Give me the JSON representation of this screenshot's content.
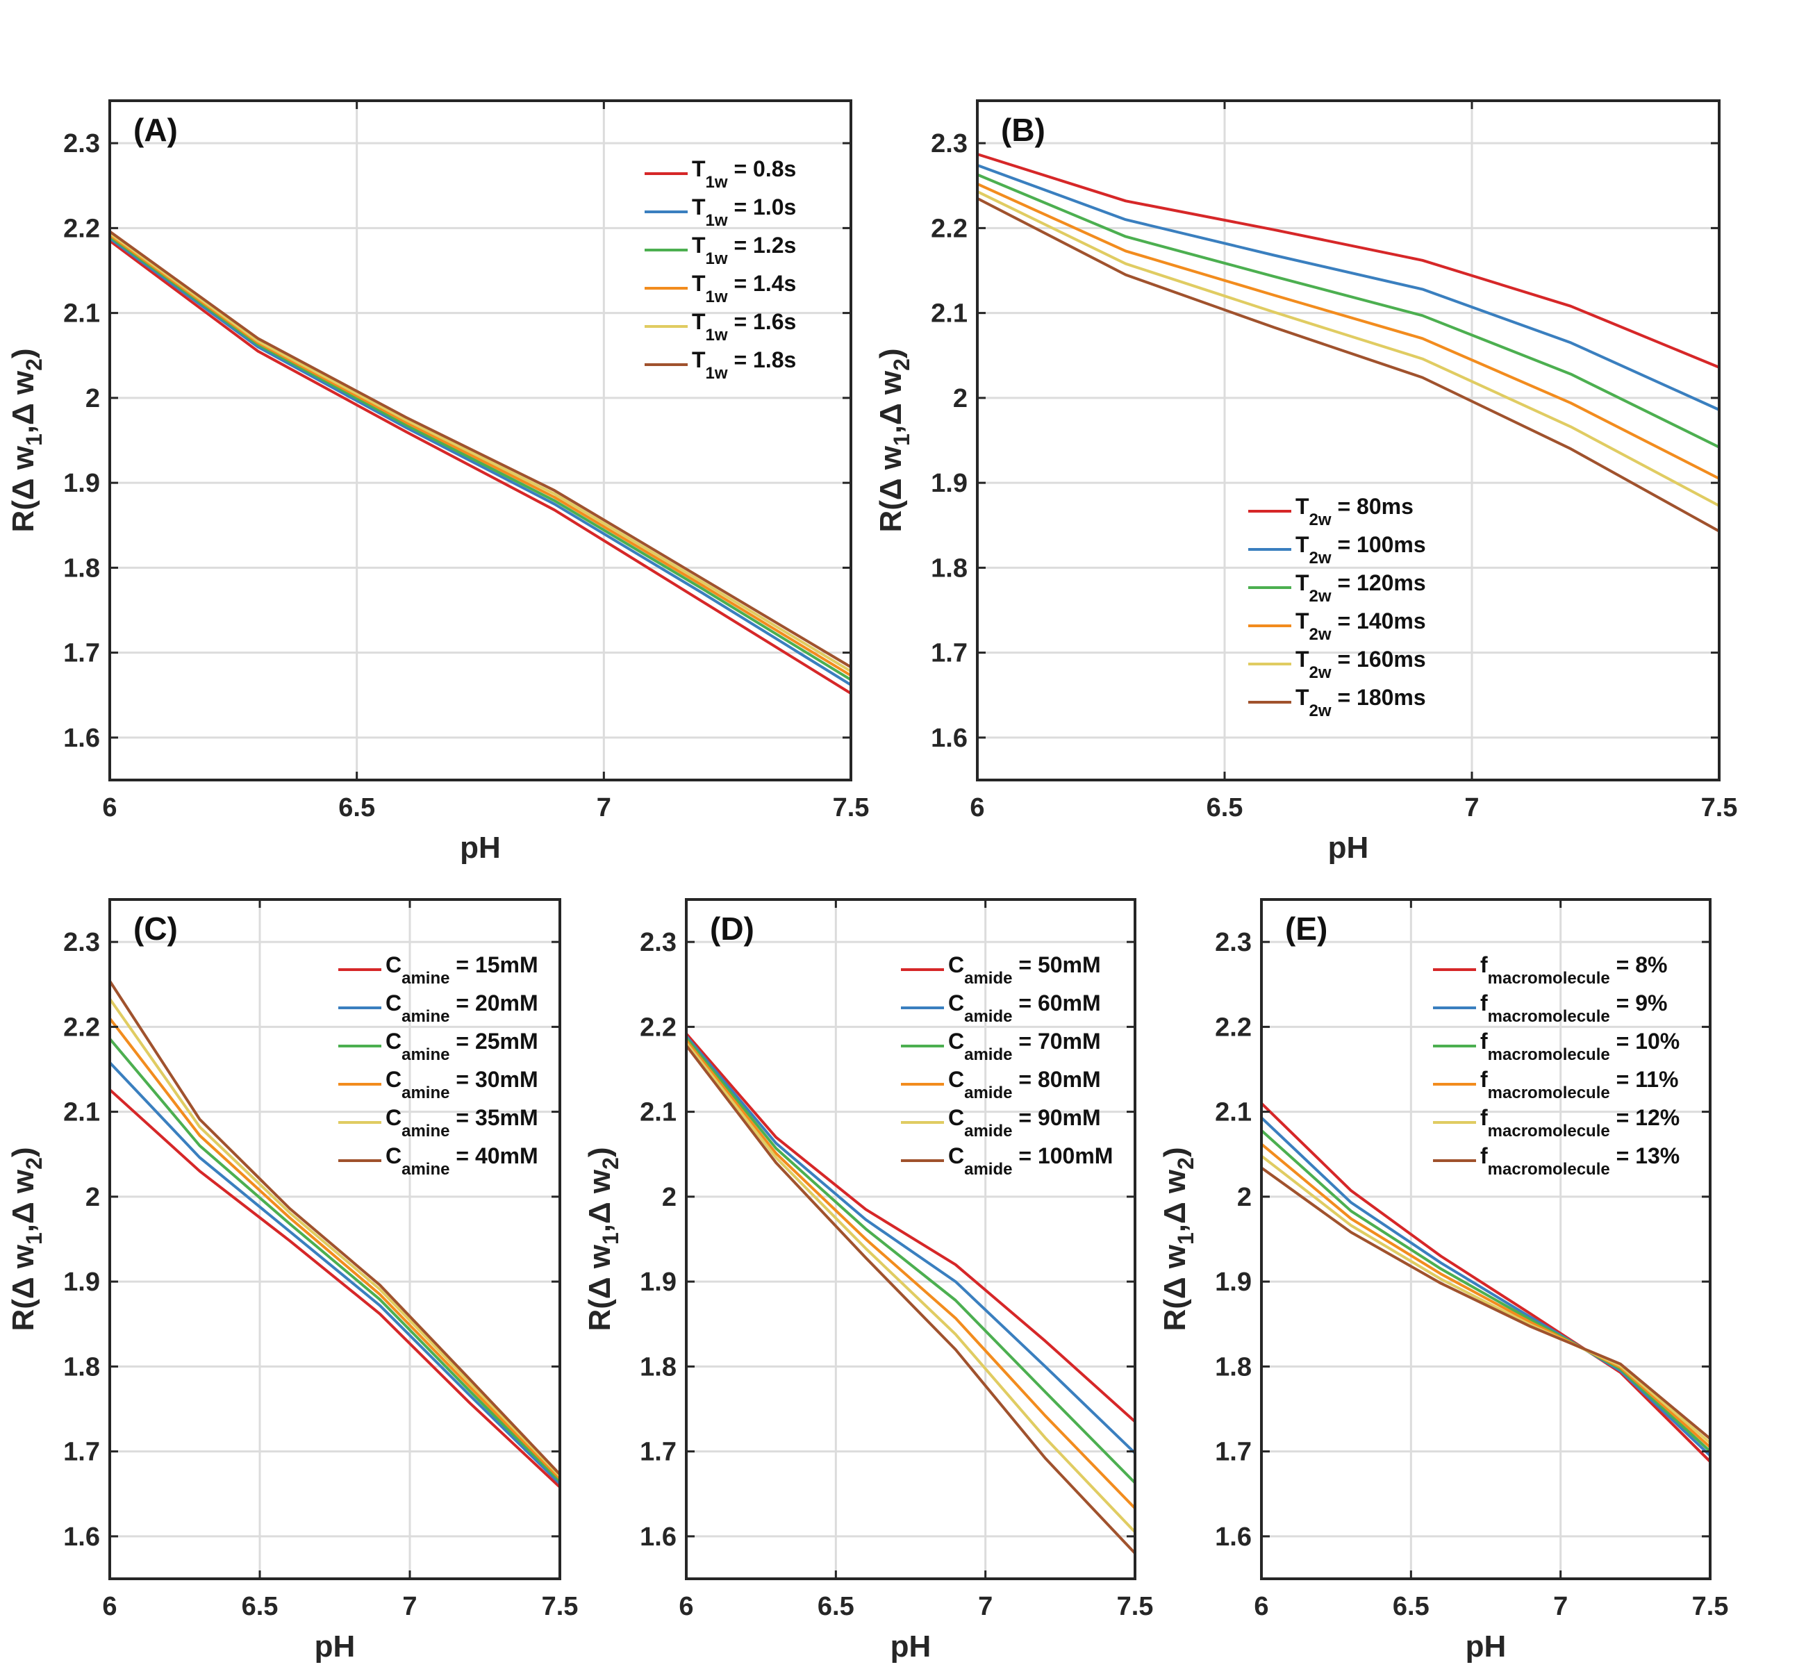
{
  "chart_data": [
    {
      "type": "line",
      "panel_label": "(A)",
      "xlabel": "pH",
      "ylabel": "R(Δ w1,Δ w2)",
      "ylabel_parts": [
        "R(Δ w",
        "1",
        ",Δ w",
        "2",
        ")"
      ],
      "xlim": [
        6,
        7.5
      ],
      "ylim": [
        1.55,
        2.35
      ],
      "xticks": [
        6,
        6.5,
        7,
        7.5
      ],
      "xtick_labels": [
        "6",
        "6.5",
        "7",
        "7.5"
      ],
      "yticks": [
        1.6,
        1.7,
        1.8,
        1.9,
        2.0,
        2.1,
        2.2,
        2.3
      ],
      "ytick_labels": [
        "1.6",
        "1.7",
        "1.8",
        "1.9",
        "2",
        "2.1",
        "2.2",
        "2.3"
      ],
      "grid": true,
      "legend_position": "top-right",
      "x": [
        6.0,
        6.3,
        6.6,
        6.9,
        7.2,
        7.5
      ],
      "series": [
        {
          "name": "T1w = 0.8s",
          "legend": {
            "main": "T",
            "sub": "1w",
            "rest": " = 0.8s"
          },
          "color": "#d62728",
          "values": [
            2.185,
            2.055,
            1.96,
            1.868,
            1.76,
            1.652
          ]
        },
        {
          "name": "T1w = 1.0s",
          "legend": {
            "main": "T",
            "sub": "1w",
            "rest": " = 1.0s"
          },
          "color": "#3a7fbf",
          "values": [
            2.188,
            2.06,
            1.965,
            1.875,
            1.77,
            1.662
          ]
        },
        {
          "name": "T1w = 1.2s",
          "legend": {
            "main": "T",
            "sub": "1w",
            "rest": " = 1.2s"
          },
          "color": "#4caf50",
          "values": [
            2.19,
            2.063,
            1.968,
            1.879,
            1.775,
            1.668
          ]
        },
        {
          "name": "T1w = 1.4s",
          "legend": {
            "main": "T",
            "sub": "1w",
            "rest": " = 1.4s"
          },
          "color": "#f28c1e",
          "values": [
            2.192,
            2.065,
            1.971,
            1.883,
            1.779,
            1.673
          ]
        },
        {
          "name": "T1w = 1.6s",
          "legend": {
            "main": "T",
            "sub": "1w",
            "rest": " = 1.6s"
          },
          "color": "#e0cc62",
          "values": [
            2.194,
            2.067,
            1.974,
            1.887,
            1.783,
            1.678
          ]
        },
        {
          "name": "T1w = 1.8s",
          "legend": {
            "main": "T",
            "sub": "1w",
            "rest": " = 1.8s"
          },
          "color": "#a0522d",
          "values": [
            2.196,
            2.07,
            1.977,
            1.891,
            1.787,
            1.683
          ]
        }
      ]
    },
    {
      "type": "line",
      "panel_label": "(B)",
      "xlabel": "pH",
      "ylabel": "R(Δ w1,Δ w2)",
      "ylabel_parts": [
        "R(Δ w",
        "1",
        ",Δ w",
        "2",
        ")"
      ],
      "xlim": [
        6,
        7.5
      ],
      "ylim": [
        1.55,
        2.35
      ],
      "xticks": [
        6,
        6.5,
        7,
        7.5
      ],
      "xtick_labels": [
        "6",
        "6.5",
        "7",
        "7.5"
      ],
      "yticks": [
        1.6,
        1.7,
        1.8,
        1.9,
        2.0,
        2.1,
        2.2,
        2.3
      ],
      "ytick_labels": [
        "1.6",
        "1.7",
        "1.8",
        "1.9",
        "2",
        "2.1",
        "2.2",
        "2.3"
      ],
      "grid": true,
      "legend_position": "lower-middle",
      "x": [
        6.0,
        6.3,
        6.6,
        6.9,
        7.2,
        7.5
      ],
      "series": [
        {
          "name": "T2w = 80ms",
          "legend": {
            "main": "T",
            "sub": "2w",
            "rest": " = 80ms"
          },
          "color": "#d62728",
          "values": [
            2.287,
            2.232,
            2.198,
            2.162,
            2.108,
            2.036
          ]
        },
        {
          "name": "T2w = 100ms",
          "legend": {
            "main": "T",
            "sub": "2w",
            "rest": " = 100ms"
          },
          "color": "#3a7fbf",
          "values": [
            2.274,
            2.21,
            2.168,
            2.128,
            2.065,
            1.986
          ]
        },
        {
          "name": "T2w = 120ms",
          "legend": {
            "main": "T",
            "sub": "2w",
            "rest": " = 120ms"
          },
          "color": "#4caf50",
          "values": [
            2.263,
            2.19,
            2.143,
            2.097,
            2.028,
            1.942
          ]
        },
        {
          "name": "T2w = 140ms",
          "legend": {
            "main": "T",
            "sub": "2w",
            "rest": " = 140ms"
          },
          "color": "#f28c1e",
          "values": [
            2.252,
            2.173,
            2.121,
            2.07,
            1.994,
            1.905
          ]
        },
        {
          "name": "T2w = 160ms",
          "legend": {
            "main": "T",
            "sub": "2w",
            "rest": " = 160ms"
          },
          "color": "#e0cc62",
          "values": [
            2.243,
            2.158,
            2.101,
            2.046,
            1.966,
            1.873
          ]
        },
        {
          "name": "T2w = 180ms",
          "legend": {
            "main": "T",
            "sub": "2w",
            "rest": " = 180ms"
          },
          "color": "#a0522d",
          "values": [
            2.235,
            2.145,
            2.083,
            2.024,
            1.94,
            1.843
          ]
        }
      ]
    },
    {
      "type": "line",
      "panel_label": "(C)",
      "xlabel": "pH",
      "ylabel": "R(Δ w1,Δ w2)",
      "ylabel_parts": [
        "R(Δ w",
        "1",
        ",Δ w",
        "2",
        ")"
      ],
      "xlim": [
        6,
        7.5
      ],
      "ylim": [
        1.55,
        2.35
      ],
      "xticks": [
        6,
        6.5,
        7,
        7.5
      ],
      "xtick_labels": [
        "6",
        "6.5",
        "7",
        "7.5"
      ],
      "yticks": [
        1.6,
        1.7,
        1.8,
        1.9,
        2.0,
        2.1,
        2.2,
        2.3
      ],
      "ytick_labels": [
        "1.6",
        "1.7",
        "1.8",
        "1.9",
        "2",
        "2.1",
        "2.2",
        "2.3"
      ],
      "grid": true,
      "legend_position": "top-right",
      "x": [
        6.0,
        6.3,
        6.6,
        6.9,
        7.2,
        7.5
      ],
      "series": [
        {
          "name": "Camine = 15mM",
          "legend": {
            "main": "C",
            "sub": "amine",
            "rest": " = 15mM"
          },
          "color": "#d62728",
          "values": [
            2.126,
            2.03,
            1.948,
            1.862,
            1.757,
            1.658
          ]
        },
        {
          "name": "Camine = 20mM",
          "legend": {
            "main": "C",
            "sub": "amine",
            "rest": " = 20mM"
          },
          "color": "#3a7fbf",
          "values": [
            2.158,
            2.046,
            1.959,
            1.872,
            1.766,
            1.662
          ]
        },
        {
          "name": "Camine = 25mM",
          "legend": {
            "main": "C",
            "sub": "amine",
            "rest": " = 25mM"
          },
          "color": "#4caf50",
          "values": [
            2.186,
            2.06,
            1.968,
            1.879,
            1.771,
            1.665
          ]
        },
        {
          "name": "Camine = 30mM",
          "legend": {
            "main": "C",
            "sub": "amine",
            "rest": " = 30mM"
          },
          "color": "#f28c1e",
          "values": [
            2.21,
            2.072,
            1.975,
            1.885,
            1.776,
            1.668
          ]
        },
        {
          "name": "Camine = 35mM",
          "legend": {
            "main": "C",
            "sub": "amine",
            "rest": " = 35mM"
          },
          "color": "#e0cc62",
          "values": [
            2.233,
            2.082,
            1.981,
            1.891,
            1.781,
            1.671
          ]
        },
        {
          "name": "Camine = 40mM",
          "legend": {
            "main": "C",
            "sub": "amine",
            "rest": " = 40mM"
          },
          "color": "#a0522d",
          "values": [
            2.254,
            2.091,
            1.986,
            1.896,
            1.785,
            1.673
          ]
        }
      ]
    },
    {
      "type": "line",
      "panel_label": "(D)",
      "xlabel": "pH",
      "ylabel": "R(Δ w1,Δ w2)",
      "ylabel_parts": [
        "R(Δ w",
        "1",
        ",Δ w",
        "2",
        ")"
      ],
      "xlim": [
        6,
        7.5
      ],
      "ylim": [
        1.55,
        2.35
      ],
      "xticks": [
        6,
        6.5,
        7,
        7.5
      ],
      "xtick_labels": [
        "6",
        "6.5",
        "7",
        "7.5"
      ],
      "yticks": [
        1.6,
        1.7,
        1.8,
        1.9,
        2.0,
        2.1,
        2.2,
        2.3
      ],
      "ytick_labels": [
        "1.6",
        "1.7",
        "1.8",
        "1.9",
        "2",
        "2.1",
        "2.2",
        "2.3"
      ],
      "grid": true,
      "legend_position": "top-right",
      "x": [
        6.0,
        6.3,
        6.6,
        6.9,
        7.2,
        7.5
      ],
      "series": [
        {
          "name": "Camide = 50mM",
          "legend": {
            "main": "C",
            "sub": "amide",
            "rest": " = 50mM"
          },
          "color": "#d62728",
          "values": [
            2.192,
            2.07,
            1.985,
            1.92,
            1.83,
            1.735
          ]
        },
        {
          "name": "Camide = 60mM",
          "legend": {
            "main": "C",
            "sub": "amide",
            "rest": " = 60mM"
          },
          "color": "#3a7fbf",
          "values": [
            2.189,
            2.063,
            1.973,
            1.9,
            1.8,
            1.698
          ]
        },
        {
          "name": "Camide = 70mM",
          "legend": {
            "main": "C",
            "sub": "amide",
            "rest": " = 70mM"
          },
          "color": "#4caf50",
          "values": [
            2.187,
            2.057,
            1.962,
            1.878,
            1.77,
            1.663
          ]
        },
        {
          "name": "Camide = 80mM",
          "legend": {
            "main": "C",
            "sub": "amide",
            "rest": " = 80mM"
          },
          "color": "#f28c1e",
          "values": [
            2.184,
            2.051,
            1.95,
            1.857,
            1.742,
            1.633
          ]
        },
        {
          "name": "Camide = 90mM",
          "legend": {
            "main": "C",
            "sub": "amide",
            "rest": " = 90mM"
          },
          "color": "#e0cc62",
          "values": [
            2.181,
            2.046,
            1.939,
            1.838,
            1.716,
            1.605
          ]
        },
        {
          "name": "Camide = 100mM",
          "legend": {
            "main": "C",
            "sub": "amide",
            "rest": " = 100mM"
          },
          "color": "#a0522d",
          "values": [
            2.178,
            2.04,
            1.928,
            1.82,
            1.692,
            1.58
          ]
        }
      ]
    },
    {
      "type": "line",
      "panel_label": "(E)",
      "xlabel": "pH",
      "ylabel": "R(Δ w1,Δ w2)",
      "ylabel_parts": [
        "R(Δ w",
        "1",
        ",Δ w",
        "2",
        ")"
      ],
      "xlim": [
        6,
        7.5
      ],
      "ylim": [
        1.55,
        2.35
      ],
      "xticks": [
        6,
        6.5,
        7,
        7.5
      ],
      "xtick_labels": [
        "6",
        "6.5",
        "7",
        "7.5"
      ],
      "yticks": [
        1.6,
        1.7,
        1.8,
        1.9,
        2.0,
        2.1,
        2.2,
        2.3
      ],
      "ytick_labels": [
        "1.6",
        "1.7",
        "1.8",
        "1.9",
        "2",
        "2.1",
        "2.2",
        "2.3"
      ],
      "grid": true,
      "legend_position": "top-right",
      "x": [
        6.0,
        6.3,
        6.6,
        6.9,
        7.2,
        7.5
      ],
      "series": [
        {
          "name": "fmacromolecule = 8%",
          "legend": {
            "main": "f",
            "sub": "macromolecule",
            "rest": " = 8%"
          },
          "color": "#d62728",
          "values": [
            2.11,
            2.007,
            1.93,
            1.862,
            1.793,
            1.688
          ]
        },
        {
          "name": "fmacromolecule = 9%",
          "legend": {
            "main": "f",
            "sub": "macromolecule",
            "rest": " = 9%"
          },
          "color": "#3a7fbf",
          "values": [
            2.093,
            1.993,
            1.922,
            1.858,
            1.795,
            1.695
          ]
        },
        {
          "name": "fmacromolecule = 10%",
          "legend": {
            "main": "f",
            "sub": "macromolecule",
            "rest": " = 10%"
          },
          "color": "#4caf50",
          "values": [
            2.078,
            1.983,
            1.915,
            1.855,
            1.797,
            1.7
          ]
        },
        {
          "name": "fmacromolecule = 11%",
          "legend": {
            "main": "f",
            "sub": "macromolecule",
            "rest": " = 11%"
          },
          "color": "#f28c1e",
          "values": [
            2.062,
            1.974,
            1.909,
            1.852,
            1.799,
            1.705
          ]
        },
        {
          "name": "fmacromolecule = 12%",
          "legend": {
            "main": "f",
            "sub": "macromolecule",
            "rest": " = 12%"
          },
          "color": "#e0cc62",
          "values": [
            2.048,
            1.966,
            1.903,
            1.849,
            1.801,
            1.71
          ]
        },
        {
          "name": "fmacromolecule = 13%",
          "legend": {
            "main": "f",
            "sub": "macromolecule",
            "rest": " = 13%"
          },
          "color": "#a0522d",
          "values": [
            2.034,
            1.958,
            1.898,
            1.847,
            1.803,
            1.715
          ]
        }
      ]
    }
  ]
}
